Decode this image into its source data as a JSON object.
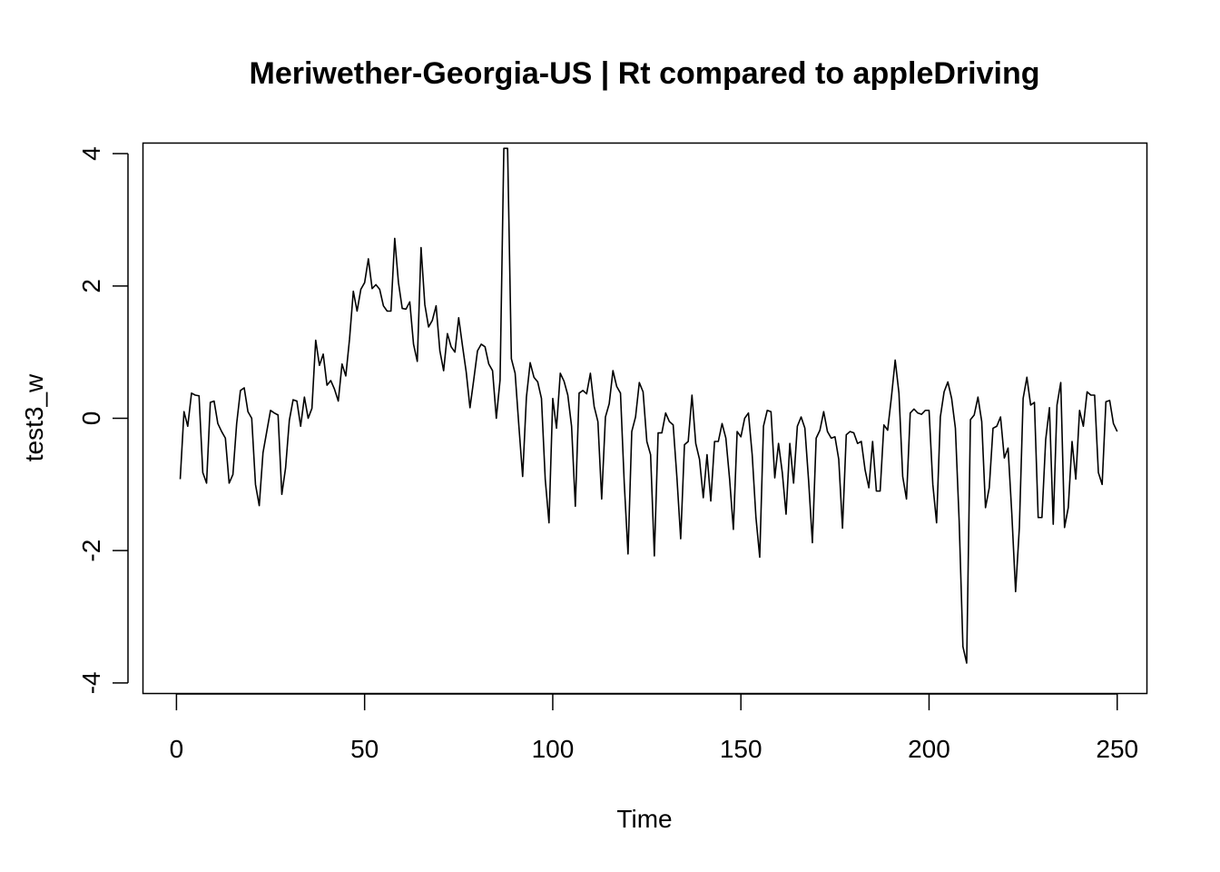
{
  "chart_data": {
    "type": "line",
    "title": "Meriwether-Georgia-US | Rt compared to appleDriving",
    "xlabel": "Time",
    "ylabel": "test3_w",
    "xlim": [
      -8.9,
      257.9
    ],
    "ylim": [
      -4.16,
      4.16
    ],
    "x_ticks": [
      0,
      50,
      100,
      150,
      200,
      250
    ],
    "y_ticks": [
      -4,
      -2,
      0,
      2,
      4
    ],
    "x_tick_labels": [
      "0",
      "50",
      "100",
      "150",
      "200",
      "250"
    ],
    "y_tick_labels": [
      "-4",
      "-2",
      "0",
      "2",
      "4"
    ],
    "grid": false,
    "legend": "none",
    "line_color": "#000000",
    "series": [
      {
        "x_start": 1,
        "x_step": 1,
        "values": [
          -0.92,
          0.1,
          -0.12,
          0.38,
          0.35,
          0.34,
          -0.82,
          -0.98,
          0.24,
          0.26,
          -0.08,
          -0.2,
          -0.3,
          -0.98,
          -0.85,
          -0.08,
          0.42,
          0.46,
          0.1,
          0.0,
          -1.0,
          -1.32,
          -0.52,
          -0.2,
          0.12,
          0.08,
          0.05,
          -1.15,
          -0.75,
          -0.03,
          0.28,
          0.26,
          -0.12,
          0.32,
          0.0,
          0.15,
          1.18,
          0.8,
          0.97,
          0.5,
          0.57,
          0.44,
          0.26,
          0.82,
          0.64,
          1.2,
          1.92,
          1.62,
          1.95,
          2.05,
          2.41,
          1.96,
          2.02,
          1.95,
          1.7,
          1.62,
          1.62,
          2.72,
          2.05,
          1.66,
          1.65,
          1.76,
          1.12,
          0.86,
          2.58,
          1.72,
          1.38,
          1.48,
          1.7,
          1.02,
          0.72,
          1.28,
          1.08,
          1.0,
          1.52,
          1.1,
          0.7,
          0.16,
          0.58,
          1.02,
          1.12,
          1.08,
          0.82,
          0.72,
          0.0,
          0.58,
          4.08,
          4.08,
          0.9,
          0.68,
          -0.12,
          -0.88,
          0.32,
          0.84,
          0.62,
          0.55,
          0.3,
          -0.92,
          -1.58,
          0.3,
          -0.15,
          0.68,
          0.56,
          0.35,
          -0.12,
          -1.33,
          0.38,
          0.42,
          0.37,
          0.68,
          0.18,
          -0.05,
          -1.22,
          0.02,
          0.22,
          0.72,
          0.48,
          0.38,
          -0.98,
          -2.05,
          -0.2,
          0.02,
          0.54,
          0.4,
          -0.35,
          -0.55,
          -2.08,
          -0.22,
          -0.22,
          0.08,
          -0.05,
          -0.1,
          -0.9,
          -1.82,
          -0.4,
          -0.35,
          0.35,
          -0.38,
          -0.62,
          -1.2,
          -0.55,
          -1.25,
          -0.35,
          -0.35,
          -0.08,
          -0.3,
          -0.92,
          -1.68,
          -0.2,
          -0.28,
          0.0,
          0.08,
          -0.55,
          -1.5,
          -2.1,
          -0.12,
          0.12,
          0.1,
          -0.9,
          -0.38,
          -0.82,
          -1.45,
          -0.38,
          -0.98,
          -0.12,
          0.02,
          -0.15,
          -0.95,
          -1.88,
          -0.3,
          -0.18,
          0.1,
          -0.2,
          -0.3,
          -0.28,
          -0.62,
          -1.66,
          -0.25,
          -0.2,
          -0.22,
          -0.38,
          -0.35,
          -0.78,
          -1.05,
          -0.35,
          -1.1,
          -1.1,
          -0.1,
          -0.18,
          0.32,
          0.88,
          0.38,
          -0.88,
          -1.22,
          0.08,
          0.14,
          0.08,
          0.06,
          0.12,
          0.12,
          -1.0,
          -1.58,
          0.02,
          0.4,
          0.55,
          0.3,
          -0.15,
          -1.55,
          -3.45,
          -3.7,
          -0.02,
          0.05,
          0.32,
          -0.05,
          -1.35,
          -1.05,
          -0.15,
          -0.12,
          0.02,
          -0.6,
          -0.45,
          -1.45,
          -2.62,
          -1.65,
          0.3,
          0.62,
          0.2,
          0.24,
          -1.5,
          -1.5,
          -0.32,
          0.16,
          -1.6,
          0.2,
          0.54,
          -1.65,
          -1.35,
          -0.35,
          -0.92,
          0.12,
          -0.12,
          0.4,
          0.35,
          0.35,
          -0.82,
          -1.0,
          0.25,
          0.27,
          -0.08,
          -0.2
        ]
      }
    ]
  }
}
